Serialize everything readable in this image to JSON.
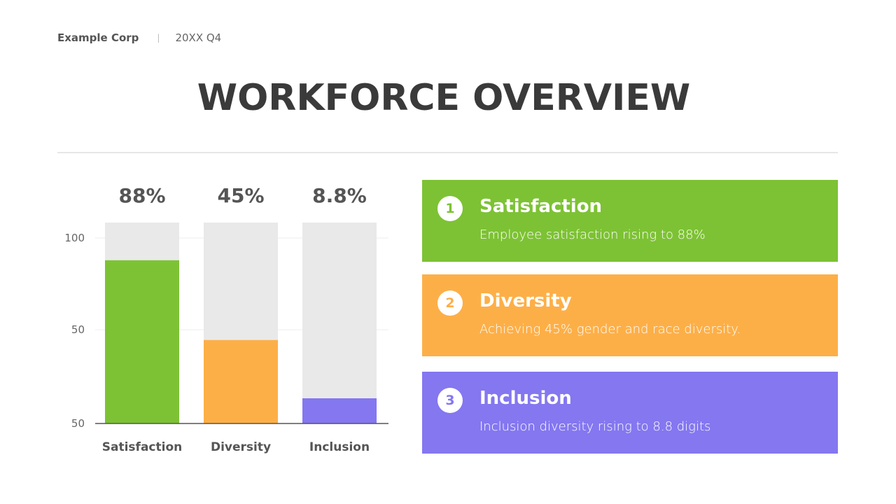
{
  "header": {
    "company": "Example Corp",
    "separator": "|",
    "period": "20XX Q4"
  },
  "title": "WORKFORCE OVERVIEW",
  "colors": {
    "satisfaction": "#7dc234",
    "diversity": "#fdaf47",
    "inclusion": "#8477f0",
    "track": "#e9e9e9",
    "text": "#3b3b3b"
  },
  "chart_data": {
    "type": "bar",
    "categories": [
      "Satisfaction",
      "Diversity",
      "Inclusion"
    ],
    "values": [
      88,
      45,
      8.8
    ],
    "value_labels": [
      "88%",
      "45%",
      "8.8%"
    ],
    "tick_labels": [
      "50",
      "50",
      "100"
    ],
    "ylim": [
      0,
      100
    ],
    "grid": true,
    "background_track": true
  },
  "cards": [
    {
      "number": "1",
      "title": "Satisfaction",
      "description": "Employee satisfaction rising to 88%"
    },
    {
      "number": "2",
      "title": "Diversity",
      "description": "Achieving 45% gender and race diversity."
    },
    {
      "number": "3",
      "title": "Inclusion",
      "description": "Inclusion diversity rising to 8.8 digits"
    }
  ]
}
